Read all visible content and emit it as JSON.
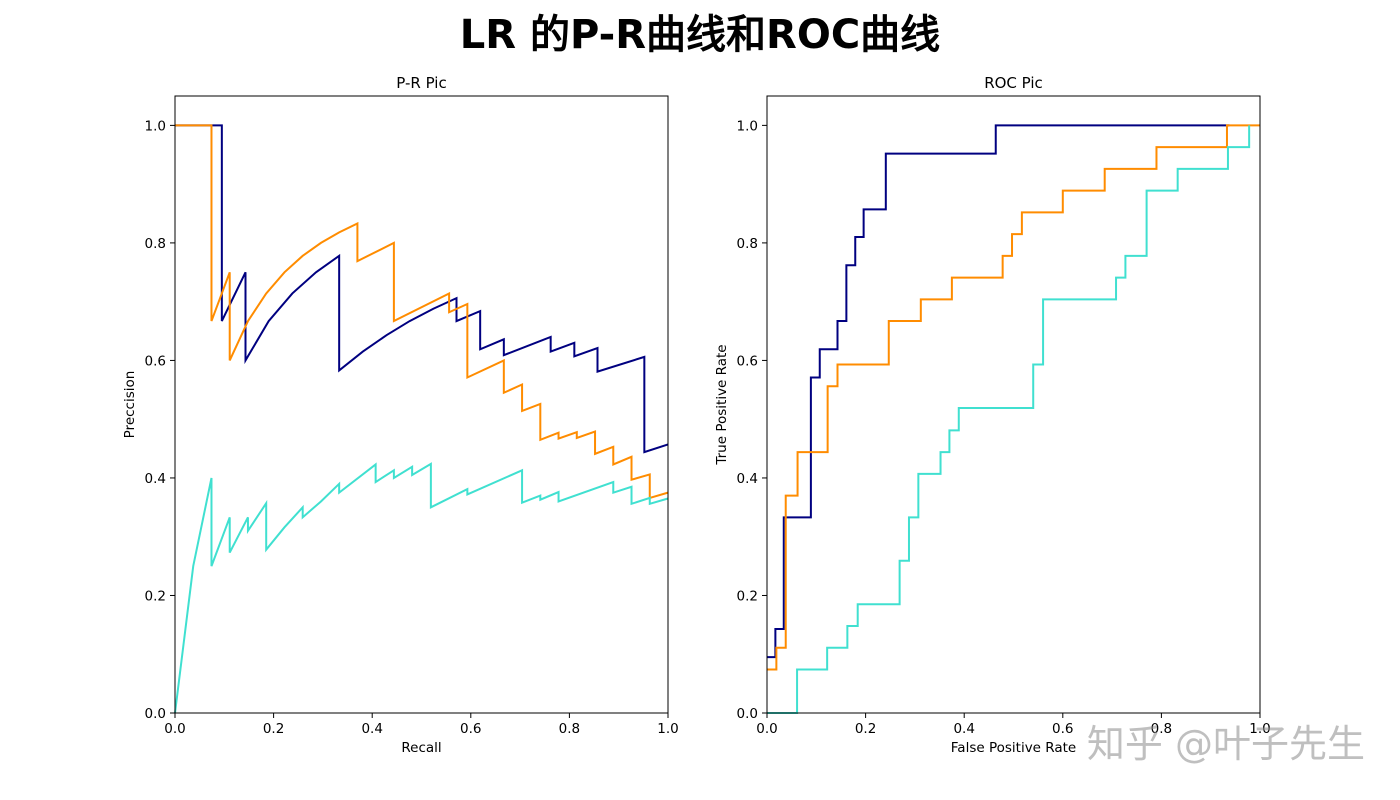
{
  "figure": {
    "suptitle": "LR 的P-R曲线和ROC曲线",
    "watermark": "知乎 @叶子先生"
  },
  "colors": {
    "navy": "#000080",
    "darkorange": "#ff8c00",
    "turquoise": "#40e0d0"
  },
  "chart_data": [
    {
      "type": "line",
      "title": "P-R Pic",
      "xlabel": "Recall",
      "ylabel": "Preccision",
      "xlim": [
        0,
        1
      ],
      "ylim": [
        0,
        1.05
      ],
      "xticks": [
        0.0,
        0.2,
        0.4,
        0.6,
        0.8,
        1.0
      ],
      "yticks": [
        0.0,
        0.2,
        0.4,
        0.6,
        0.8,
        1.0
      ],
      "xtick_labels": [
        "0.0",
        "0.2",
        "0.4",
        "0.6",
        "0.8",
        "1.0"
      ],
      "ytick_labels": [
        "0.0",
        "0.2",
        "0.4",
        "0.6",
        "0.8",
        "1.0"
      ],
      "grid": false,
      "series": [
        {
          "color": "#000080",
          "points": [
            [
              0,
              1
            ],
            [
              0.095,
              1
            ],
            [
              0.095,
              0.667
            ],
            [
              0.143,
              0.75
            ],
            [
              0.143,
              0.6
            ],
            [
              0.19,
              0.667
            ],
            [
              0.238,
              0.714
            ],
            [
              0.286,
              0.75
            ],
            [
              0.333,
              0.778
            ],
            [
              0.333,
              0.583
            ],
            [
              0.381,
              0.615
            ],
            [
              0.429,
              0.643
            ],
            [
              0.476,
              0.667
            ],
            [
              0.524,
              0.688
            ],
            [
              0.571,
              0.706
            ],
            [
              0.571,
              0.667
            ],
            [
              0.619,
              0.684
            ],
            [
              0.619,
              0.619
            ],
            [
              0.667,
              0.636
            ],
            [
              0.667,
              0.609
            ],
            [
              0.762,
              0.64
            ],
            [
              0.762,
              0.615
            ],
            [
              0.81,
              0.63
            ],
            [
              0.81,
              0.607
            ],
            [
              0.857,
              0.621
            ],
            [
              0.857,
              0.581
            ],
            [
              0.952,
              0.606
            ],
            [
              0.952,
              0.444
            ],
            [
              1,
              0.457
            ]
          ]
        },
        {
          "color": "#ff8c00",
          "points": [
            [
              0,
              1
            ],
            [
              0.074,
              1
            ],
            [
              0.074,
              0.667
            ],
            [
              0.111,
              0.75
            ],
            [
              0.111,
              0.6
            ],
            [
              0.148,
              0.667
            ],
            [
              0.185,
              0.714
            ],
            [
              0.222,
              0.75
            ],
            [
              0.259,
              0.778
            ],
            [
              0.296,
              0.8
            ],
            [
              0.333,
              0.818
            ],
            [
              0.37,
              0.833
            ],
            [
              0.37,
              0.769
            ],
            [
              0.444,
              0.8
            ],
            [
              0.444,
              0.667
            ],
            [
              0.556,
              0.714
            ],
            [
              0.556,
              0.682
            ],
            [
              0.593,
              0.696
            ],
            [
              0.593,
              0.571
            ],
            [
              0.667,
              0.6
            ],
            [
              0.667,
              0.545
            ],
            [
              0.704,
              0.559
            ],
            [
              0.704,
              0.514
            ],
            [
              0.741,
              0.526
            ],
            [
              0.741,
              0.465
            ],
            [
              0.778,
              0.477
            ],
            [
              0.778,
              0.467
            ],
            [
              0.815,
              0.478
            ],
            [
              0.815,
              0.468
            ],
            [
              0.852,
              0.479
            ],
            [
              0.852,
              0.441
            ],
            [
              0.889,
              0.453
            ],
            [
              0.889,
              0.423
            ],
            [
              0.926,
              0.436
            ],
            [
              0.926,
              0.397
            ],
            [
              0.963,
              0.406
            ],
            [
              0.963,
              0.366
            ],
            [
              1,
              0.375
            ]
          ]
        },
        {
          "color": "#40e0d0",
          "points": [
            [
              0,
              0
            ],
            [
              0.037,
              0.25
            ],
            [
              0.074,
              0.4
            ],
            [
              0.074,
              0.25
            ],
            [
              0.111,
              0.333
            ],
            [
              0.111,
              0.273
            ],
            [
              0.148,
              0.333
            ],
            [
              0.148,
              0.31
            ],
            [
              0.185,
              0.357
            ],
            [
              0.185,
              0.278
            ],
            [
              0.222,
              0.316
            ],
            [
              0.259,
              0.35
            ],
            [
              0.259,
              0.333
            ],
            [
              0.296,
              0.36
            ],
            [
              0.333,
              0.39
            ],
            [
              0.333,
              0.375
            ],
            [
              0.407,
              0.423
            ],
            [
              0.407,
              0.393
            ],
            [
              0.444,
              0.413
            ],
            [
              0.444,
              0.4
            ],
            [
              0.481,
              0.419
            ],
            [
              0.481,
              0.405
            ],
            [
              0.519,
              0.424
            ],
            [
              0.519,
              0.35
            ],
            [
              0.593,
              0.381
            ],
            [
              0.593,
              0.372
            ],
            [
              0.704,
              0.413
            ],
            [
              0.704,
              0.358
            ],
            [
              0.741,
              0.37
            ],
            [
              0.741,
              0.363
            ],
            [
              0.778,
              0.376
            ],
            [
              0.778,
              0.36
            ],
            [
              0.889,
              0.393
            ],
            [
              0.889,
              0.375
            ],
            [
              0.926,
              0.385
            ],
            [
              0.926,
              0.356
            ],
            [
              0.963,
              0.366
            ],
            [
              0.963,
              0.356
            ],
            [
              1,
              0.365
            ]
          ]
        }
      ]
    },
    {
      "type": "line",
      "title": "ROC Pic",
      "xlabel": "False Positive Rate",
      "ylabel": "True Positive Rate",
      "xlim": [
        0,
        1
      ],
      "ylim": [
        0,
        1.05
      ],
      "xticks": [
        0.0,
        0.2,
        0.4,
        0.6,
        0.8,
        1.0
      ],
      "yticks": [
        0.0,
        0.2,
        0.4,
        0.6,
        0.8,
        1.0
      ],
      "xtick_labels": [
        "0.0",
        "0.2",
        "0.4",
        "0.6",
        "0.8",
        "1.0"
      ],
      "ytick_labels": [
        "0.0",
        "0.2",
        "0.4",
        "0.6",
        "0.8",
        "1.0"
      ],
      "grid": false,
      "series": [
        {
          "color": "#000080",
          "points": [
            [
              0,
              0.095
            ],
            [
              0.017,
              0.095
            ],
            [
              0.017,
              0.143
            ],
            [
              0.034,
              0.143
            ],
            [
              0.034,
              0.333
            ],
            [
              0.089,
              0.333
            ],
            [
              0.089,
              0.571
            ],
            [
              0.107,
              0.571
            ],
            [
              0.107,
              0.619
            ],
            [
              0.143,
              0.619
            ],
            [
              0.143,
              0.667
            ],
            [
              0.161,
              0.667
            ],
            [
              0.161,
              0.762
            ],
            [
              0.179,
              0.762
            ],
            [
              0.179,
              0.81
            ],
            [
              0.196,
              0.81
            ],
            [
              0.196,
              0.857
            ],
            [
              0.241,
              0.857
            ],
            [
              0.241,
              0.952
            ],
            [
              0.464,
              0.952
            ],
            [
              0.464,
              1.0
            ],
            [
              0.938,
              1.0
            ]
          ]
        },
        {
          "color": "#ff8c00",
          "points": [
            [
              0,
              0.074
            ],
            [
              0.019,
              0.074
            ],
            [
              0.019,
              0.111
            ],
            [
              0.038,
              0.111
            ],
            [
              0.038,
              0.37
            ],
            [
              0.062,
              0.37
            ],
            [
              0.062,
              0.444
            ],
            [
              0.123,
              0.444
            ],
            [
              0.123,
              0.556
            ],
            [
              0.143,
              0.556
            ],
            [
              0.143,
              0.593
            ],
            [
              0.247,
              0.593
            ],
            [
              0.247,
              0.667
            ],
            [
              0.312,
              0.667
            ],
            [
              0.312,
              0.704
            ],
            [
              0.375,
              0.704
            ],
            [
              0.375,
              0.741
            ],
            [
              0.478,
              0.741
            ],
            [
              0.478,
              0.778
            ],
            [
              0.497,
              0.778
            ],
            [
              0.497,
              0.815
            ],
            [
              0.517,
              0.815
            ],
            [
              0.517,
              0.852
            ],
            [
              0.6,
              0.852
            ],
            [
              0.6,
              0.889
            ],
            [
              0.685,
              0.889
            ],
            [
              0.685,
              0.926
            ],
            [
              0.79,
              0.926
            ],
            [
              0.79,
              0.963
            ],
            [
              0.933,
              0.963
            ],
            [
              0.933,
              1.0
            ],
            [
              1,
              1.0
            ]
          ]
        },
        {
          "color": "#40e0d0",
          "points": [
            [
              0,
              0
            ],
            [
              0.061,
              0
            ],
            [
              0.061,
              0.074
            ],
            [
              0.122,
              0.074
            ],
            [
              0.122,
              0.111
            ],
            [
              0.163,
              0.111
            ],
            [
              0.163,
              0.148
            ],
            [
              0.184,
              0.148
            ],
            [
              0.184,
              0.185
            ],
            [
              0.269,
              0.185
            ],
            [
              0.269,
              0.259
            ],
            [
              0.288,
              0.259
            ],
            [
              0.288,
              0.333
            ],
            [
              0.307,
              0.333
            ],
            [
              0.307,
              0.407
            ],
            [
              0.352,
              0.407
            ],
            [
              0.352,
              0.444
            ],
            [
              0.37,
              0.444
            ],
            [
              0.37,
              0.481
            ],
            [
              0.389,
              0.481
            ],
            [
              0.389,
              0.519
            ],
            [
              0.54,
              0.519
            ],
            [
              0.54,
              0.593
            ],
            [
              0.56,
              0.593
            ],
            [
              0.56,
              0.704
            ],
            [
              0.708,
              0.704
            ],
            [
              0.708,
              0.741
            ],
            [
              0.727,
              0.741
            ],
            [
              0.727,
              0.778
            ],
            [
              0.77,
              0.778
            ],
            [
              0.77,
              0.889
            ],
            [
              0.833,
              0.889
            ],
            [
              0.833,
              0.926
            ],
            [
              0.935,
              0.926
            ],
            [
              0.935,
              0.963
            ],
            [
              0.978,
              0.963
            ],
            [
              0.978,
              1.0
            ]
          ]
        }
      ]
    }
  ]
}
